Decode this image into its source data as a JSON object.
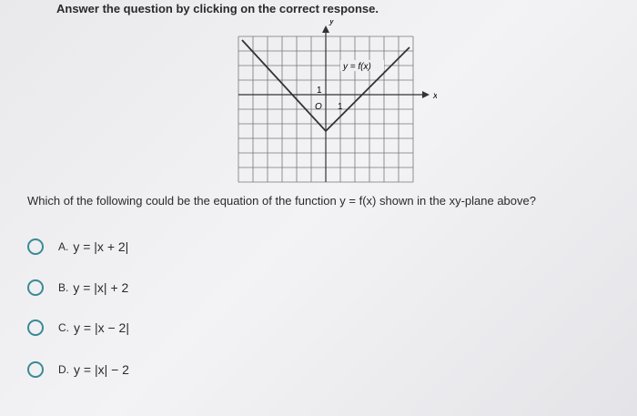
{
  "header": {
    "instruction": "Answer the question by clicking on the correct response."
  },
  "figure": {
    "y_axis_label": "y",
    "x_axis_label": "x",
    "function_label": "y = f(x)",
    "y_unit_label": "1",
    "origin_label": "O",
    "x_unit_label": "1"
  },
  "question": "Which of the following could be the equation of the function y = f(x) shown in the xy-plane above?",
  "options": [
    {
      "letter": "A.",
      "text": "y = |x + 2|"
    },
    {
      "letter": "B.",
      "text": "y = |x| + 2"
    },
    {
      "letter": "C.",
      "text": "y = |x − 2|"
    },
    {
      "letter": "D.",
      "text": "y = |x| − 2"
    }
  ]
}
